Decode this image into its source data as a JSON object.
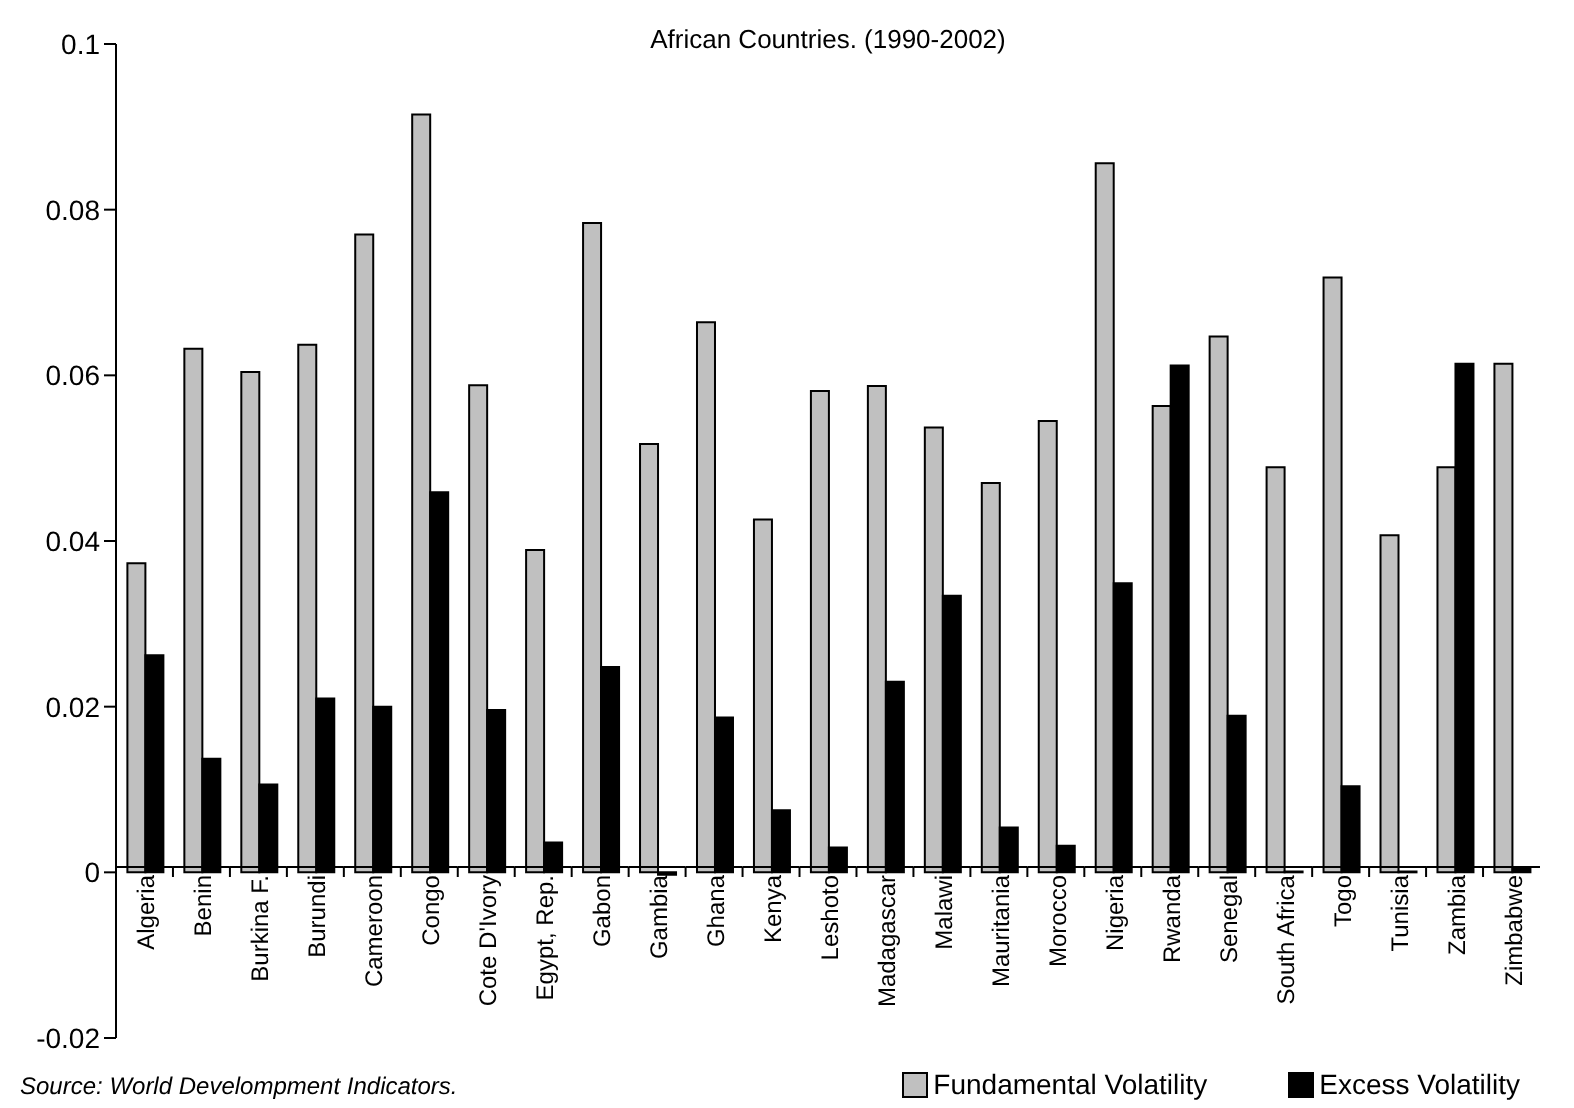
{
  "chart_data": {
    "type": "bar",
    "title": "African Countries. (1990-2002)",
    "categories": [
      "Algeria",
      "Benin",
      "Burkina F.",
      "Burundi",
      "Cameroon",
      "Congo",
      "Cote D'Ivory",
      "Egypt, Rep.",
      "Gabon",
      "Gambia",
      "Ghana",
      "Kenya",
      "Leshoto",
      "Madagascar",
      "Malawi",
      "Mauritania",
      "Morocco",
      "Nigeria",
      "Rwanda",
      "Senegal",
      "South Africa",
      "Togo",
      "Tunisia",
      "Zambia",
      "Zimbabwe"
    ],
    "series": [
      {
        "name": "Fundamental Volatility",
        "color": "#c0c0c0",
        "values": [
          0.0373,
          0.0632,
          0.0604,
          0.0637,
          0.077,
          0.0915,
          0.0588,
          0.0389,
          0.0784,
          0.0517,
          0.0664,
          0.0426,
          0.0581,
          0.0587,
          0.0537,
          0.047,
          0.0545,
          0.0856,
          0.0563,
          0.0647,
          0.0489,
          0.0718,
          0.0407,
          0.0489,
          0.0614
        ]
      },
      {
        "name": "Excess Volatility",
        "color": "#000000",
        "values": [
          0.0262,
          0.0137,
          0.0106,
          0.021,
          0.02,
          0.0459,
          0.0196,
          0.0036,
          0.0248,
          -0.0003,
          0.0187,
          0.0075,
          0.003,
          0.023,
          0.0334,
          0.0054,
          0.0032,
          0.0349,
          0.0612,
          0.0189,
          0.0001,
          0.0104,
          0.0001,
          0.0614,
          0.0004
        ]
      }
    ],
    "ylim": [
      -0.02,
      0.1
    ],
    "yticks": [
      -0.02,
      0,
      0.02,
      0.04,
      0.06,
      0.08,
      0.1
    ],
    "grid": false,
    "legend": "bottom right",
    "annotations": [
      "Source: World Develompment Indicators."
    ]
  }
}
